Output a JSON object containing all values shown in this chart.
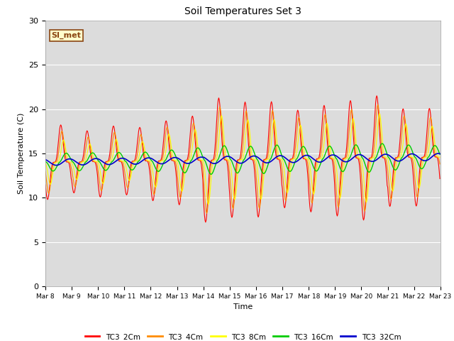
{
  "title": "Soil Temperatures Set 3",
  "xlabel": "Time",
  "ylabel": "Soil Temperature (C)",
  "ylim": [
    0,
    30
  ],
  "background_color": "#dcdcdc",
  "grid_color": "#ffffff",
  "annotation_text": "SI_met",
  "annotation_bg": "#ffffcc",
  "annotation_border": "#8b4513",
  "xtick_labels": [
    "Mar 8",
    "Mar 9",
    "Mar 10",
    "Mar 11",
    "Mar 12",
    "Mar 13",
    "Mar 14",
    "Mar 15",
    "Mar 16",
    "Mar 17",
    "Mar 18",
    "Mar 19",
    "Mar 20",
    "Mar 21",
    "Mar 22",
    "Mar 23"
  ],
  "legend_colors": [
    "#ff0000",
    "#ff8c00",
    "#ffff00",
    "#00cc00",
    "#0000cd"
  ],
  "legend_labels": [
    "TC3_2Cm",
    "TC3_4Cm",
    "TC3_8Cm",
    "TC3_16Cm",
    "TC3_32Cm"
  ],
  "n_days": 15,
  "pts_per_day": 48,
  "base_temp": 14.0,
  "base_trend_slope": 0.04,
  "day_amps_2cm": [
    4.2,
    3.5,
    4.0,
    3.8,
    4.5,
    5.0,
    7.0,
    6.5,
    6.5,
    5.5,
    6.0,
    6.5,
    7.0,
    5.5,
    5.5
  ],
  "day_amps_4cm": [
    3.5,
    2.8,
    3.3,
    3.0,
    3.8,
    4.2,
    6.0,
    5.5,
    5.5,
    4.7,
    5.0,
    5.5,
    6.0,
    4.7,
    4.5
  ],
  "day_amps_8cm": [
    2.5,
    2.0,
    2.5,
    2.2,
    3.0,
    3.5,
    5.0,
    4.5,
    4.5,
    3.8,
    4.0,
    4.5,
    5.0,
    3.8,
    3.5
  ],
  "day_amps_16cm": [
    1.0,
    1.0,
    1.0,
    1.0,
    1.2,
    1.4,
    1.6,
    1.5,
    1.6,
    1.4,
    1.4,
    1.5,
    1.6,
    1.4,
    1.3
  ],
  "day_amps_32cm": [
    0.35,
    0.35,
    0.35,
    0.35,
    0.35,
    0.35,
    0.4,
    0.4,
    0.4,
    0.4,
    0.4,
    0.4,
    0.4,
    0.4,
    0.4
  ],
  "phase_2cm_hr": 14.0,
  "phase_4cm_hr": 15.0,
  "phase_8cm_hr": 16.5,
  "phase_16cm_hr": 19.0,
  "phase_32cm_hr": 22.0,
  "spike_power": 3.5
}
